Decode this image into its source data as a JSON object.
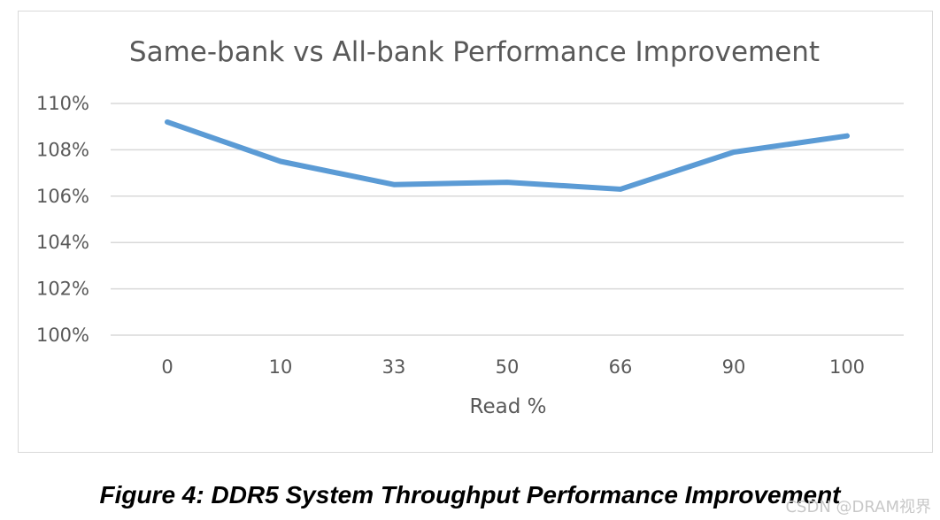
{
  "chart_data": {
    "type": "line",
    "title": "Same-bank vs All-bank Performance Improvement",
    "xlabel": "Read %",
    "ylabel": "",
    "categories": [
      "0",
      "10",
      "33",
      "50",
      "66",
      "90",
      "100"
    ],
    "series": [
      {
        "values": [
          109.2,
          107.5,
          106.5,
          106.6,
          106.3,
          107.9,
          108.6
        ]
      }
    ],
    "ylim": [
      100,
      110
    ],
    "y_ticks": [
      "100%",
      "102%",
      "104%",
      "106%",
      "108%",
      "110%"
    ],
    "grid": true,
    "legend": "none",
    "colors": {
      "series": "#5b9bd5",
      "grid": "#d9d9d9",
      "text": "#595959"
    }
  },
  "caption": "Figure 4:  DDR5 System Throughput Performance Improvement",
  "watermark": "CSDN @DRAM视界"
}
